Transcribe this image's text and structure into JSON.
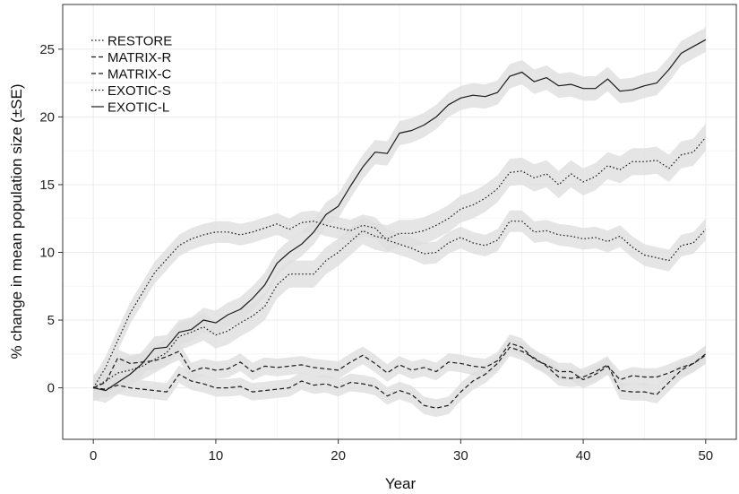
{
  "chart_data": {
    "type": "line",
    "xlabel": "Year",
    "ylabel": "% change in mean population size (±SE)",
    "xlim": [
      -2.5,
      52.5
    ],
    "ylim": [
      -3.8,
      28.3
    ],
    "x_ticks": [
      0,
      10,
      20,
      30,
      40,
      50
    ],
    "y_ticks": [
      0,
      5,
      10,
      15,
      20,
      25
    ],
    "grid": true,
    "legend": "top-left",
    "band": "±SE shaded ribbon",
    "se_color": "#dedede",
    "series": [
      {
        "name": "RESTORE",
        "dash": "dotted",
        "x": [
          0,
          1,
          2,
          3,
          4,
          5,
          6,
          7,
          8,
          9,
          10,
          11,
          12,
          13,
          14,
          15,
          16,
          17,
          18,
          19,
          20,
          21,
          22,
          23,
          24,
          25,
          26,
          27,
          28,
          29,
          30,
          31,
          32,
          33,
          34,
          35,
          36,
          37,
          38,
          39,
          40,
          41,
          42,
          43,
          44,
          45,
          46,
          47,
          48,
          49,
          50
        ],
        "y": [
          0,
          1.5,
          3.5,
          5.5,
          7,
          8.5,
          9.5,
          10.5,
          11,
          11.3,
          11.5,
          11.5,
          11.3,
          11.5,
          11.8,
          12.1,
          11.7,
          12.2,
          12.3,
          12.0,
          11.8,
          11.6,
          12.0,
          11.8,
          10.9,
          10.6,
          10.3,
          9.9,
          10.0,
          10.7,
          11.1,
          10.7,
          10.5,
          10.9,
          12.3,
          12.3,
          11.5,
          11.6,
          11.3,
          11.2,
          11.0,
          11.1,
          10.8,
          11.2,
          10.4,
          9.8,
          9.6,
          9.4,
          10.5,
          10.7,
          11.7
        ],
        "se": 0.8
      },
      {
        "name": "MATRIX-R",
        "dash": "dashed",
        "x": [
          0,
          1,
          2,
          3,
          4,
          5,
          6,
          7,
          8,
          9,
          10,
          11,
          12,
          13,
          14,
          15,
          16,
          17,
          18,
          19,
          20,
          21,
          22,
          23,
          24,
          25,
          26,
          27,
          28,
          29,
          30,
          31,
          32,
          33,
          34,
          35,
          36,
          37,
          38,
          39,
          40,
          41,
          42,
          43,
          44,
          45,
          46,
          47,
          48,
          49,
          50
        ],
        "y": [
          0,
          0.4,
          2.2,
          1.8,
          1.9,
          2.0,
          2.3,
          2.7,
          1.2,
          1.5,
          1.3,
          1.4,
          1.9,
          1.2,
          1.6,
          1.5,
          1.6,
          1.7,
          1.5,
          1.4,
          1.3,
          1.9,
          2.4,
          1.8,
          1.1,
          1.7,
          1.3,
          1.5,
          1.2,
          1.9,
          1.8,
          1.6,
          1.5,
          2.0,
          3.3,
          3.0,
          2.1,
          1.7,
          1.2,
          1.2,
          0.6,
          1.0,
          1.6,
          0.6,
          0.9,
          0.8,
          0.8,
          1.1,
          1.5,
          1.8,
          2.5
        ],
        "se": 0.65
      },
      {
        "name": "MATRIX-C",
        "dash": "dashed",
        "x": [
          0,
          1,
          2,
          3,
          4,
          5,
          6,
          7,
          8,
          9,
          10,
          11,
          12,
          13,
          14,
          15,
          16,
          17,
          18,
          19,
          20,
          21,
          22,
          23,
          24,
          25,
          26,
          27,
          28,
          29,
          30,
          31,
          32,
          33,
          34,
          35,
          36,
          37,
          38,
          39,
          40,
          41,
          42,
          43,
          44,
          45,
          46,
          47,
          48,
          49,
          50
        ],
        "y": [
          0,
          -0.1,
          0.2,
          0.0,
          -0.1,
          -0.2,
          -0.3,
          1.0,
          0.5,
          0.3,
          0.0,
          0.0,
          0.1,
          -0.3,
          -0.2,
          -0.1,
          0.0,
          0.5,
          0.2,
          0.3,
          0.0,
          0.4,
          0.3,
          0.1,
          -0.6,
          -0.2,
          -0.5,
          -1.3,
          -1.5,
          -1.3,
          -0.3,
          0.5,
          1.0,
          1.8,
          3.0,
          2.7,
          2.2,
          1.6,
          0.8,
          0.7,
          0.8,
          1.2,
          1.7,
          -0.2,
          -0.3,
          -0.3,
          -0.5,
          0.4,
          1.3,
          1.8,
          2.4
        ],
        "se": 0.65
      },
      {
        "name": "EXOTIC-S",
        "dash": "dotted",
        "x": [
          0,
          1,
          2,
          3,
          4,
          5,
          6,
          7,
          8,
          9,
          10,
          11,
          12,
          13,
          14,
          15,
          16,
          17,
          18,
          19,
          20,
          21,
          22,
          23,
          24,
          25,
          26,
          27,
          28,
          29,
          30,
          31,
          32,
          33,
          34,
          35,
          36,
          37,
          38,
          39,
          40,
          41,
          42,
          43,
          44,
          45,
          46,
          47,
          48,
          49,
          50
        ],
        "y": [
          0,
          0.5,
          1.1,
          1.3,
          1.6,
          2.1,
          2.6,
          3.8,
          4.1,
          4.5,
          3.9,
          4.2,
          4.8,
          5.3,
          6.0,
          7.6,
          8.4,
          8.4,
          8.4,
          9.4,
          10.0,
          10.8,
          11.6,
          11.2,
          11.0,
          11.4,
          11.4,
          11.6,
          12.0,
          12.5,
          13.2,
          13.5,
          14.0,
          14.7,
          15.9,
          16.0,
          15.5,
          15.8,
          15.0,
          15.8,
          15.2,
          15.6,
          16.4,
          16.1,
          16.7,
          16.7,
          16.8,
          16.2,
          17.2,
          17.4,
          18.5
        ],
        "se": 1.0
      },
      {
        "name": "EXOTIC-L",
        "dash": "solid",
        "x": [
          0,
          1,
          2,
          3,
          4,
          5,
          6,
          7,
          8,
          9,
          10,
          11,
          12,
          13,
          14,
          15,
          16,
          17,
          18,
          19,
          20,
          21,
          22,
          23,
          24,
          25,
          26,
          27,
          28,
          29,
          30,
          31,
          32,
          33,
          34,
          35,
          36,
          37,
          38,
          39,
          40,
          41,
          42,
          43,
          44,
          45,
          46,
          47,
          48,
          49,
          50
        ],
        "y": [
          0,
          -0.2,
          0.4,
          1.0,
          1.8,
          2.9,
          3.0,
          4.1,
          4.3,
          5.0,
          4.8,
          5.4,
          5.8,
          6.6,
          7.6,
          9.2,
          10.0,
          10.6,
          11.5,
          12.8,
          13.4,
          14.9,
          16.3,
          17.4,
          17.3,
          18.8,
          19.0,
          19.4,
          20.0,
          20.9,
          21.4,
          21.6,
          21.5,
          21.8,
          23.0,
          23.3,
          22.6,
          22.9,
          22.3,
          22.4,
          22.1,
          22.1,
          22.8,
          21.9,
          22.0,
          22.3,
          22.5,
          23.5,
          24.7,
          25.2,
          25.7
        ],
        "se": 0.9
      }
    ]
  }
}
